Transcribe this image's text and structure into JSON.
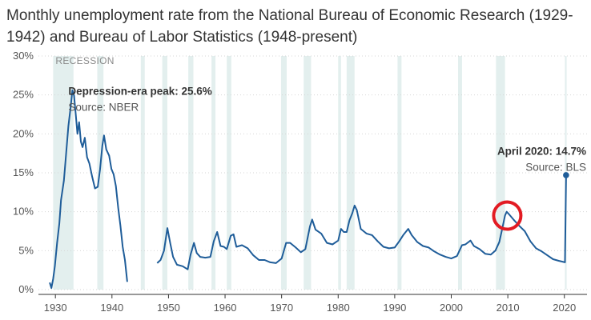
{
  "chart_data": {
    "type": "line",
    "title": "Monthly unemployment rate from the National Bureau of Economic Research (1929-1942) and Bureau of Labor Statistics (1948-present)",
    "recession_label": "RECESSION",
    "x_ticks": [
      "1930",
      "1940",
      "1950",
      "1960",
      "1970",
      "1980",
      "1990",
      "2000",
      "2010",
      "2020"
    ],
    "y_ticks": [
      "0%",
      "5%",
      "10%",
      "15%",
      "20%",
      "25%",
      "30%"
    ],
    "xlim": [
      1927,
      2024
    ],
    "ylim": [
      0,
      30
    ],
    "line_color": "#1f5d99",
    "recession_color": "#e3efee",
    "highlight_color": "#e21b23",
    "recessions": [
      [
        1929.6,
        1933.2
      ],
      [
        1937.4,
        1938.5
      ],
      [
        1945.1,
        1945.8
      ],
      [
        1948.9,
        1949.8
      ],
      [
        1953.5,
        1954.4
      ],
      [
        1957.6,
        1958.3
      ],
      [
        1960.3,
        1961.1
      ],
      [
        1969.9,
        1970.9
      ],
      [
        1973.9,
        1975.2
      ],
      [
        1980.0,
        1980.5
      ],
      [
        1981.5,
        1982.9
      ],
      [
        1990.5,
        1991.2
      ],
      [
        2001.2,
        2001.9
      ],
      [
        2007.9,
        2009.5
      ],
      [
        2020.1,
        2020.4
      ]
    ],
    "series": [
      {
        "name": "NBER",
        "values": [
          [
            1929.0,
            0.9
          ],
          [
            1929.3,
            0.2
          ],
          [
            1929.6,
            1.4
          ],
          [
            1929.9,
            3.0
          ],
          [
            1930.3,
            6.0
          ],
          [
            1930.7,
            8.5
          ],
          [
            1931.0,
            11.5
          ],
          [
            1931.5,
            14.0
          ],
          [
            1931.9,
            17.5
          ],
          [
            1932.3,
            21.0
          ],
          [
            1932.7,
            23.5
          ],
          [
            1933.0,
            25.6
          ],
          [
            1933.3,
            24.9
          ],
          [
            1933.6,
            22.5
          ],
          [
            1933.9,
            20.0
          ],
          [
            1934.2,
            21.5
          ],
          [
            1934.5,
            19.0
          ],
          [
            1934.8,
            18.3
          ],
          [
            1935.2,
            19.5
          ],
          [
            1935.6,
            17.0
          ],
          [
            1936.0,
            16.2
          ],
          [
            1936.5,
            14.5
          ],
          [
            1937.0,
            13.0
          ],
          [
            1937.5,
            13.2
          ],
          [
            1937.9,
            15.5
          ],
          [
            1938.3,
            18.5
          ],
          [
            1938.6,
            19.8
          ],
          [
            1939.0,
            18.0
          ],
          [
            1939.5,
            17.2
          ],
          [
            1939.9,
            15.5
          ],
          [
            1940.3,
            14.8
          ],
          [
            1940.7,
            13.3
          ],
          [
            1941.1,
            10.5
          ],
          [
            1941.5,
            8.2
          ],
          [
            1941.9,
            5.5
          ],
          [
            1942.3,
            3.8
          ],
          [
            1942.7,
            1.0
          ]
        ]
      },
      {
        "name": "BLS",
        "values": [
          [
            1948.0,
            3.4
          ],
          [
            1948.6,
            3.8
          ],
          [
            1949.2,
            5.0
          ],
          [
            1949.8,
            7.9
          ],
          [
            1950.3,
            6.0
          ],
          [
            1950.8,
            4.2
          ],
          [
            1951.5,
            3.2
          ],
          [
            1952.5,
            3.0
          ],
          [
            1953.4,
            2.6
          ],
          [
            1953.9,
            4.5
          ],
          [
            1954.5,
            6.0
          ],
          [
            1955.0,
            4.7
          ],
          [
            1955.6,
            4.2
          ],
          [
            1956.5,
            4.1
          ],
          [
            1957.4,
            4.2
          ],
          [
            1958.0,
            6.2
          ],
          [
            1958.6,
            7.4
          ],
          [
            1959.2,
            5.6
          ],
          [
            1959.8,
            5.5
          ],
          [
            1960.3,
            5.2
          ],
          [
            1961.0,
            6.9
          ],
          [
            1961.5,
            7.1
          ],
          [
            1962.0,
            5.5
          ],
          [
            1963.0,
            5.7
          ],
          [
            1964.0,
            5.3
          ],
          [
            1965.0,
            4.4
          ],
          [
            1966.0,
            3.8
          ],
          [
            1967.0,
            3.8
          ],
          [
            1968.0,
            3.5
          ],
          [
            1969.0,
            3.4
          ],
          [
            1970.0,
            4.0
          ],
          [
            1970.8,
            6.0
          ],
          [
            1971.5,
            6.0
          ],
          [
            1972.5,
            5.4
          ],
          [
            1973.4,
            4.8
          ],
          [
            1974.2,
            5.2
          ],
          [
            1975.0,
            8.1
          ],
          [
            1975.4,
            9.0
          ],
          [
            1976.0,
            7.7
          ],
          [
            1977.0,
            7.2
          ],
          [
            1978.0,
            6.0
          ],
          [
            1979.0,
            5.8
          ],
          [
            1980.0,
            6.3
          ],
          [
            1980.5,
            7.8
          ],
          [
            1981.0,
            7.4
          ],
          [
            1981.5,
            7.4
          ],
          [
            1982.0,
            8.9
          ],
          [
            1982.5,
            9.8
          ],
          [
            1982.9,
            10.8
          ],
          [
            1983.3,
            10.2
          ],
          [
            1984.0,
            7.8
          ],
          [
            1985.0,
            7.2
          ],
          [
            1986.0,
            7.0
          ],
          [
            1987.0,
            6.2
          ],
          [
            1988.0,
            5.5
          ],
          [
            1989.0,
            5.3
          ],
          [
            1990.0,
            5.4
          ],
          [
            1990.8,
            6.2
          ],
          [
            1991.5,
            7.0
          ],
          [
            1992.4,
            7.8
          ],
          [
            1993.0,
            7.0
          ],
          [
            1994.0,
            6.1
          ],
          [
            1995.0,
            5.6
          ],
          [
            1996.0,
            5.4
          ],
          [
            1997.0,
            4.9
          ],
          [
            1998.0,
            4.5
          ],
          [
            1999.0,
            4.2
          ],
          [
            2000.0,
            4.0
          ],
          [
            2001.0,
            4.3
          ],
          [
            2001.9,
            5.7
          ],
          [
            2002.5,
            5.8
          ],
          [
            2003.4,
            6.3
          ],
          [
            2004.0,
            5.6
          ],
          [
            2005.0,
            5.2
          ],
          [
            2006.0,
            4.6
          ],
          [
            2007.0,
            4.5
          ],
          [
            2007.8,
            5.0
          ],
          [
            2008.5,
            6.1
          ],
          [
            2009.0,
            7.8
          ],
          [
            2009.5,
            9.5
          ],
          [
            2009.8,
            10.0
          ],
          [
            2010.3,
            9.6
          ],
          [
            2011.0,
            9.0
          ],
          [
            2012.0,
            8.2
          ],
          [
            2013.0,
            7.5
          ],
          [
            2014.0,
            6.2
          ],
          [
            2015.0,
            5.3
          ],
          [
            2016.0,
            4.9
          ],
          [
            2017.0,
            4.4
          ],
          [
            2018.0,
            3.9
          ],
          [
            2019.0,
            3.7
          ],
          [
            2020.1,
            3.5
          ],
          [
            2020.3,
            14.7
          ]
        ]
      }
    ],
    "annotations": [
      {
        "bold": "Depression-era peak: 25.6%",
        "source": "Source: NBER"
      },
      {
        "bold": "April 2020: 14.7%",
        "source": "Source: BLS"
      }
    ],
    "highlight": {
      "x": 2009.9,
      "y": 9.5,
      "shape": "circle"
    }
  }
}
